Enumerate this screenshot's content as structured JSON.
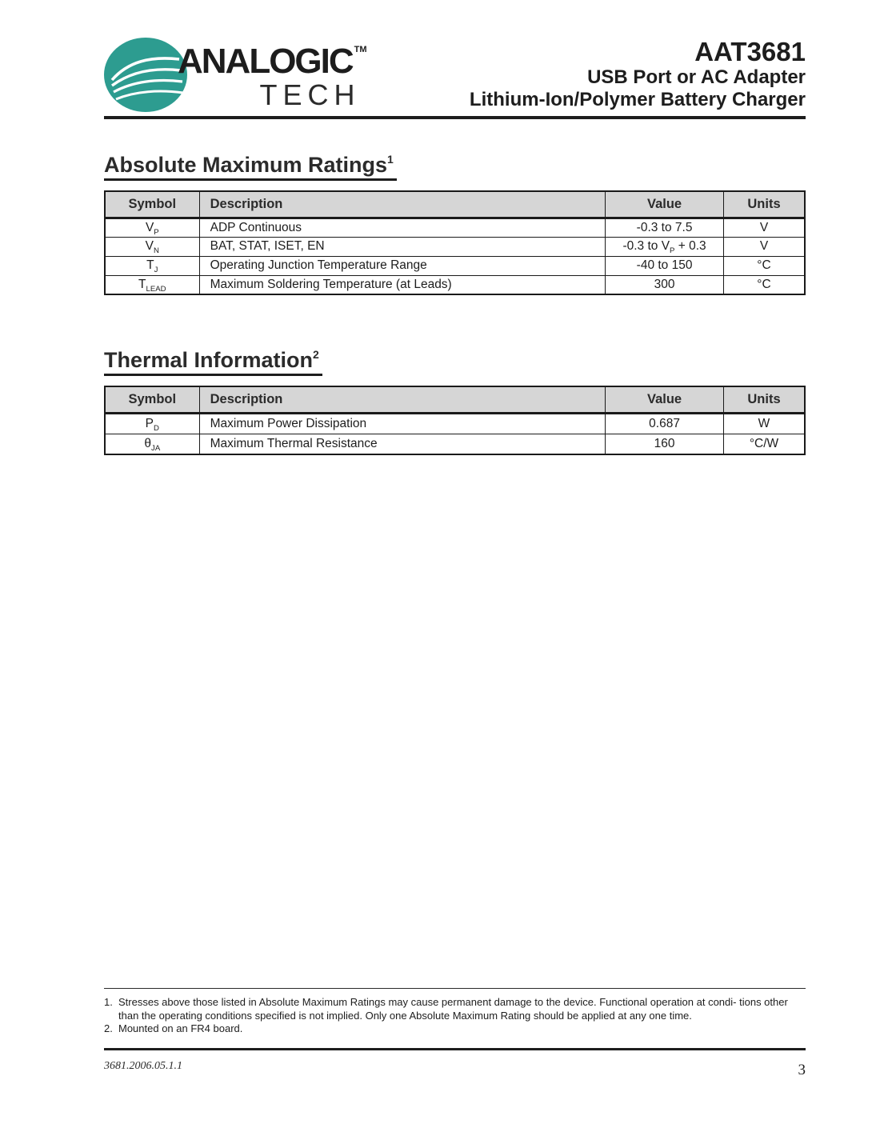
{
  "page": {
    "header": {
      "brand": {
        "logo_color": "#2d9c90",
        "name_top": "ANALOGIC",
        "trademark": "TM",
        "name_bottom": "TECH"
      },
      "part_number": "AAT3681",
      "subtitle_line1": "USB Port or AC Adapter",
      "subtitle_line2": "Lithium-Ion/Polymer Battery Charger"
    },
    "sections": [
      {
        "title": "Absolute Maximum Ratings",
        "footnote_ref": "1",
        "table": {
          "headers": [
            "Symbol",
            "Description",
            "Value",
            "Units"
          ],
          "rows": [
            [
              [
                {
                  "t": "V"
                },
                {
                  "sub": "P"
                }
              ],
              "ADP Continuous",
              "-0.3 to 7.5",
              "V"
            ],
            [
              [
                {
                  "t": "V"
                },
                {
                  "sub": "N"
                }
              ],
              "BAT, STAT, ISET, EN",
              [
                {
                  "t": "-0.3 to V"
                },
                {
                  "sub": "P"
                },
                {
                  "t": " + 0.3"
                }
              ],
              "V"
            ],
            [
              [
                {
                  "t": "T"
                },
                {
                  "sub": "J"
                }
              ],
              "Operating Junction Temperature Range",
              "-40 to 150",
              "°C"
            ],
            [
              [
                {
                  "t": "T"
                },
                {
                  "sub": "LEAD"
                }
              ],
              "Maximum Soldering Temperature (at Leads)",
              "300",
              "°C"
            ]
          ]
        }
      },
      {
        "title": "Thermal Information",
        "footnote_ref": "2",
        "table": {
          "headers": [
            "Symbol",
            "Description",
            "Value",
            "Units"
          ],
          "rows": [
            [
              [
                {
                  "t": "P"
                },
                {
                  "sub": "D"
                }
              ],
              "Maximum Power Dissipation",
              "0.687",
              "W"
            ],
            [
              [
                {
                  "t": "θ"
                },
                {
                  "sub": "JA"
                }
              ],
              "Maximum Thermal Resistance",
              "160",
              "°C/W"
            ]
          ]
        }
      }
    ],
    "footnotes": [
      {
        "num": "1.",
        "lines": [
          "Stresses above those listed in Absolute Maximum Ratings may cause permanent damage to the device.  Functional operation at condi-",
          "tions other than the operating conditions specified is not implied.  Only one Absolute Maximum Rating should be applied at any one time."
        ]
      },
      {
        "num": "2.",
        "lines": [
          "Mounted on an FR4 board."
        ]
      }
    ],
    "footer": {
      "doc_code": "3681.2006.05.1.1",
      "page_number": "3"
    }
  }
}
